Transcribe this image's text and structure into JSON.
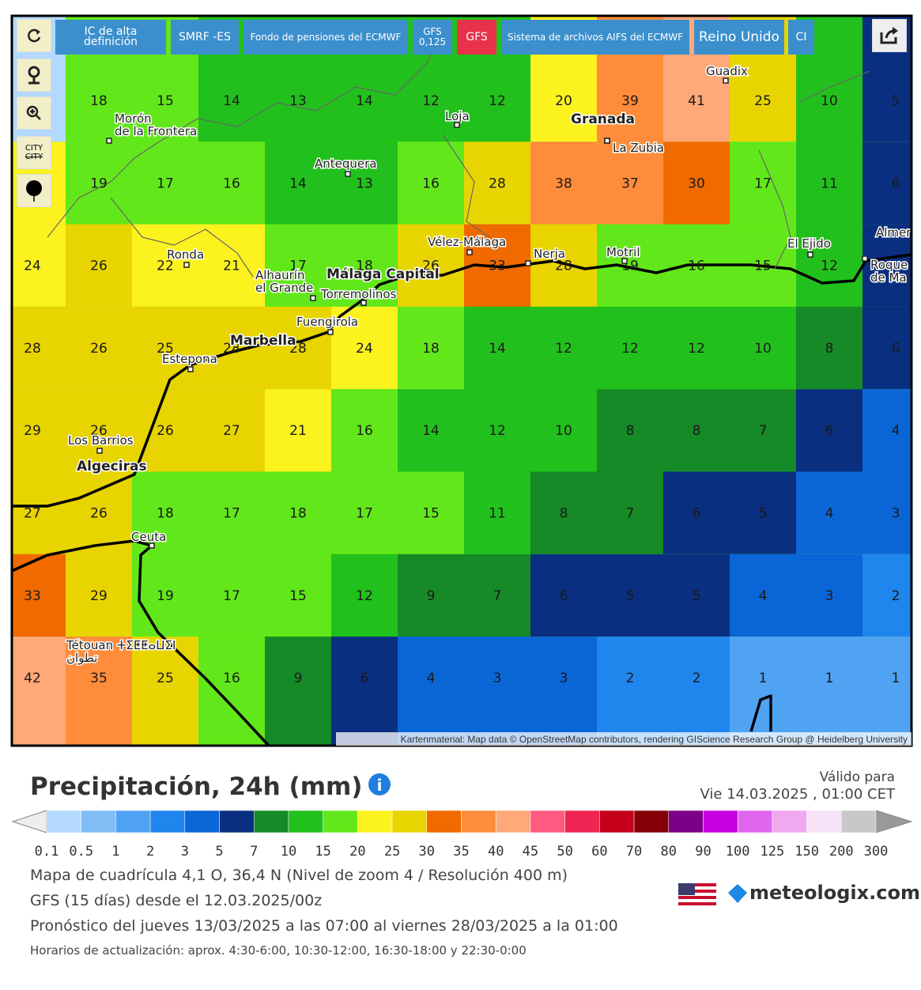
{
  "toolbar": {
    "buttons": [
      "IC de alta definición",
      "SMRF -ES",
      "Fondo de pensiones del ECMWF",
      "GFS\n0,125",
      "GFS",
      "Sistema de archivos AIFS del ECMWF",
      "Reino Unido",
      "CI"
    ],
    "city_toggle": "CITY"
  },
  "map": {
    "grid_values": [
      [
        null,
        18,
        15,
        14,
        13,
        14,
        12,
        12,
        20,
        39,
        41,
        25,
        10,
        5
      ],
      [
        null,
        19,
        17,
        16,
        14,
        13,
        16,
        28,
        38,
        37,
        30,
        17,
        11,
        6
      ],
      [
        24,
        26,
        22,
        21,
        17,
        18,
        26,
        33,
        28,
        19,
        16,
        15,
        12,
        null
      ],
      [
        28,
        26,
        25,
        28,
        28,
        24,
        18,
        14,
        12,
        12,
        12,
        10,
        8,
        6
      ],
      [
        29,
        26,
        26,
        27,
        21,
        16,
        14,
        12,
        10,
        8,
        8,
        7,
        6,
        4
      ],
      [
        27,
        26,
        18,
        17,
        18,
        17,
        15,
        11,
        8,
        7,
        6,
        5,
        4,
        3
      ],
      [
        33,
        29,
        19,
        17,
        15,
        12,
        9,
        7,
        6,
        5,
        5,
        4,
        3,
        2
      ],
      [
        42,
        35,
        25,
        16,
        9,
        6,
        4,
        3,
        3,
        2,
        2,
        1,
        1,
        1
      ]
    ],
    "places": [
      "Morón\nde la Frontera",
      "Loja",
      "Granada",
      "La Zubia",
      "Guadix",
      "Antequera",
      "Ronda",
      "Vélez-Málaga",
      "Nerja",
      "Motril",
      "El Ejido",
      "Alhaurín\nel Grande",
      "Málaga Capital",
      "Torremolinos",
      "Fuengirola",
      "Marbella",
      "Estepona",
      "Los Barrios",
      "Algeciras",
      "Ceuta",
      "Tétouan ⵜⵉⵟⵟⴰⵡⵉⵏ\nتطوان",
      "Almer",
      "Roque\nde Ma"
    ],
    "attribution": "Kartenmaterial: Map data © OpenStreetMap contributors, rendering GIScience Research Group @ Heidelberg University"
  },
  "legend": {
    "title": "Precipitación, 24h (mm)",
    "valid_label": "Válido para",
    "valid_time": "Vie 14.03.2025 , 01:00 CET",
    "ticks": [
      0.1,
      0.5,
      1,
      2,
      3,
      5,
      7,
      10,
      15,
      20,
      25,
      30,
      35,
      40,
      45,
      50,
      60,
      70,
      80,
      90,
      100,
      125,
      150,
      200,
      300
    ],
    "colors": [
      "#b3d9ff",
      "#80bdf5",
      "#4fa3f2",
      "#1f86ee",
      "#0a66d6",
      "#0a2f80",
      "#168a26",
      "#22c01c",
      "#62e81a",
      "#fbf21e",
      "#e8d400",
      "#f06a00",
      "#ff8c3a",
      "#ffa878",
      "#ff5a80",
      "#f02452",
      "#c4001a",
      "#860008",
      "#7c0088",
      "#c800e4",
      "#e066f0",
      "#f0a8f0",
      "#f8e2f8",
      "#c8c8c8"
    ]
  },
  "info": {
    "grid": "Mapa de cuadrícula 4,1 O, 36,4 N (Nivel de zoom 4 / Resolución 400 m)",
    "model": "GFS (15 días) desde el 12.03.2025/00z",
    "forecast": "Pronóstico del jueves 13/03/2025 a las 07:00 al viernes 28/03/2025 a la 01:00",
    "updates": "Horarios de actualización: aprox. 4:30-6:00, 10:30-12:00, 16:30-18:00 y 22:30-0:00",
    "logo": "meteologix.com"
  }
}
